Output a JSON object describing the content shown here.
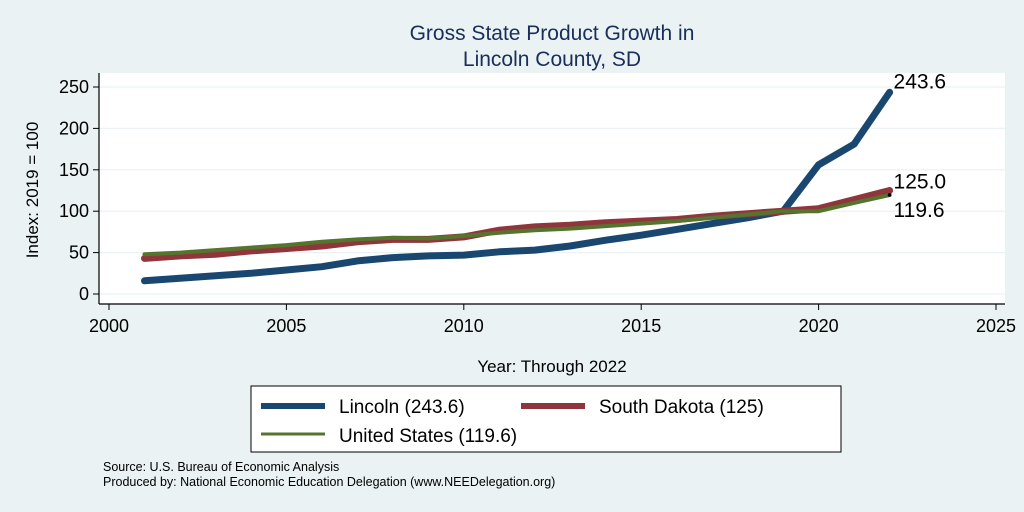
{
  "chart_data": {
    "type": "line",
    "title": [
      "Gross State Product Growth in",
      "Lincoln County, SD"
    ],
    "xlabel": "Year: Through 2022",
    "ylabel": "Index: 2019 = 100",
    "xlim": [
      2000,
      2025
    ],
    "ylim": [
      0,
      250
    ],
    "xticks": [
      2000,
      2005,
      2010,
      2015,
      2020,
      2025
    ],
    "yticks": [
      0,
      50,
      100,
      150,
      200,
      250
    ],
    "grid": true,
    "x": [
      2001,
      2002,
      2003,
      2004,
      2005,
      2006,
      2007,
      2008,
      2009,
      2010,
      2011,
      2012,
      2013,
      2014,
      2015,
      2016,
      2017,
      2018,
      2019,
      2020,
      2021,
      2022
    ],
    "series": [
      {
        "name": "Lincoln",
        "legend": "Lincoln  (243.6)",
        "color": "#1a476f",
        "end_label": "243.6",
        "values": [
          16,
          19,
          22,
          25,
          29,
          33,
          40,
          44,
          46,
          47,
          51,
          53,
          58,
          65,
          71,
          78,
          85,
          92,
          100,
          156,
          181,
          243.6
        ]
      },
      {
        "name": "South Dakota",
        "legend": "South Dakota (125)",
        "color": "#90353b",
        "end_label": "125.0",
        "values": [
          43,
          46,
          48,
          52,
          55,
          58,
          63,
          66,
          66,
          69,
          77,
          81,
          83,
          86,
          88,
          90,
          94,
          97,
          100,
          103,
          114,
          125.0
        ]
      },
      {
        "name": "United States",
        "legend": "United States (119.6)",
        "color": "#55752f",
        "end_label": "119.6",
        "values": [
          48,
          50,
          53,
          56,
          59,
          63,
          66,
          68,
          67,
          70,
          74,
          77,
          79,
          82,
          85,
          88,
          92,
          96,
          100,
          100,
          110,
          119.6
        ]
      }
    ],
    "legend_position": "bottom"
  },
  "footer": {
    "source": "Source: U.S. Bureau of Economic Analysis",
    "produced_by": "Produced by: National Economic Education Delegation (www.NEEDelegation.org)"
  }
}
